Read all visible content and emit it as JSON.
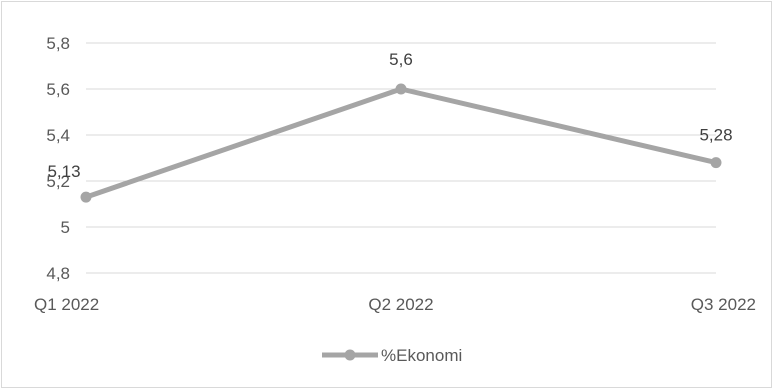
{
  "chart_data": {
    "type": "line",
    "categories": [
      "Q1 2022",
      "Q2 2022",
      "Q3 2022"
    ],
    "series": [
      {
        "name": "%Ekonomi",
        "values": [
          5.13,
          5.6,
          5.28
        ],
        "labels": [
          "5,13",
          "5,6",
          "5,28"
        ],
        "color": "#a5a5a5"
      }
    ],
    "ylim": [
      4.8,
      5.8
    ],
    "yticks": [
      5.8,
      5.6,
      5.4,
      5.2,
      5,
      4.8
    ],
    "ytick_labels": [
      "5,8",
      "5,6",
      "5,4",
      "5,2",
      "5",
      "4,8"
    ],
    "grid": true,
    "legend": "bottom",
    "gridline_color": "#d9d9d9"
  }
}
